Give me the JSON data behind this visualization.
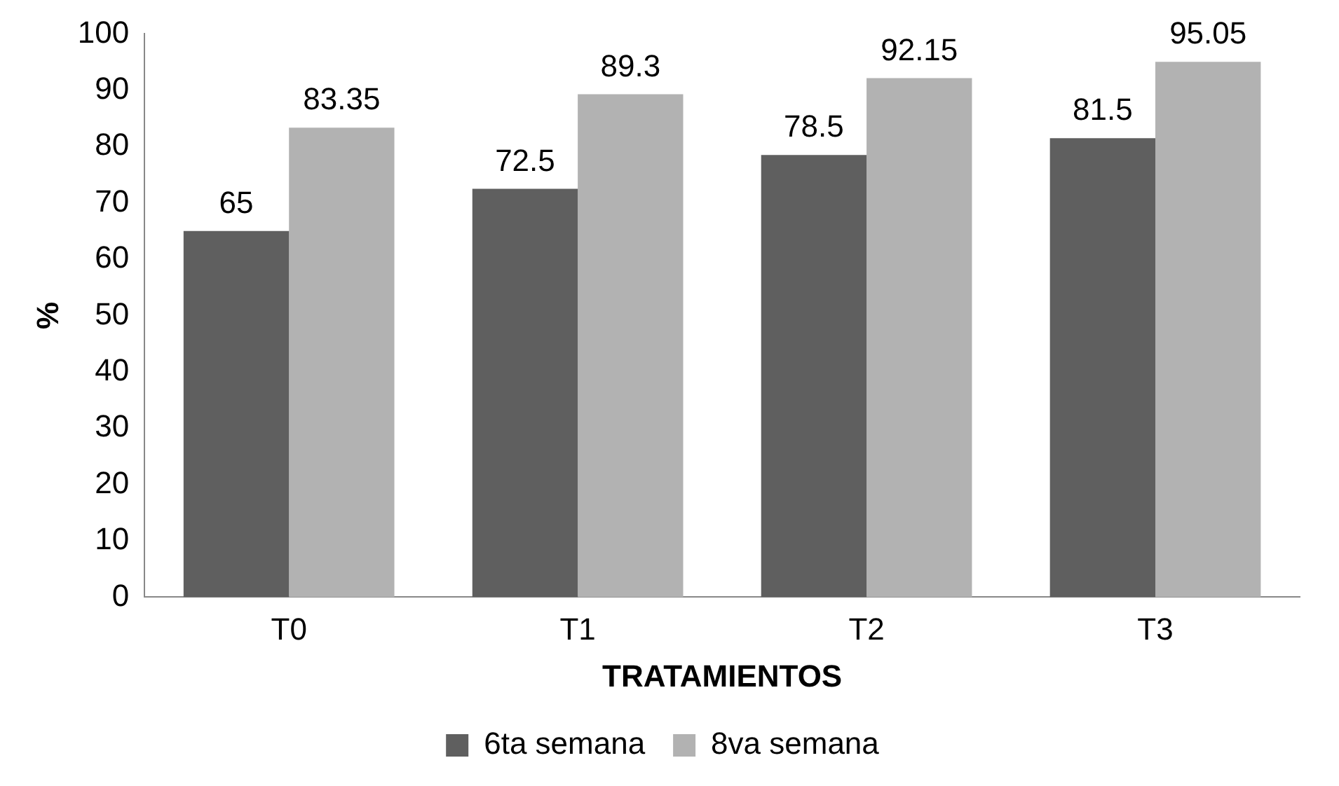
{
  "chart_data": {
    "type": "bar",
    "xlabel": "TRATAMIENTOS",
    "ylabel": "%",
    "categories": [
      "T0",
      "T1",
      "T2",
      "T3"
    ],
    "series": [
      {
        "name": "6ta semana",
        "color": "#5f5f5f",
        "values": [
          65,
          72.5,
          78.5,
          81.5
        ]
      },
      {
        "name": "8va semana",
        "color": "#b2b2b2",
        "values": [
          83.35,
          89.3,
          92.15,
          95.05
        ]
      }
    ],
    "ylim": [
      0,
      100
    ],
    "yticks": [
      0,
      10,
      20,
      30,
      40,
      50,
      60,
      70,
      80,
      90,
      100
    ],
    "grid": false,
    "legend": "bottom",
    "data_labels": true
  }
}
